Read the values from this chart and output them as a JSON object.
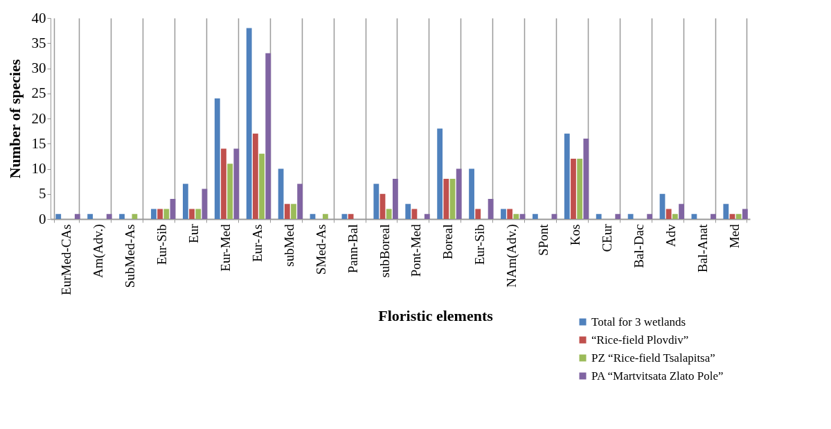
{
  "chart_data": {
    "type": "bar",
    "xlabel": "Floristic elements",
    "ylabel": "Number of species",
    "categories": [
      "EurMed-CAs",
      "Am(Adv.)",
      "SubMed-As",
      "Eur-Sib",
      "Eur",
      "Eur-Med",
      "Eur-As",
      "subMed",
      "SMed-As",
      "Pann-Bal",
      "subBoreal",
      "Pont-Med",
      "Boreal",
      "Eur-Sib",
      "NAm(Adv.)",
      "SPont",
      "Kos",
      "CEur",
      "Bal-Dac",
      "Adv",
      "Bal-Anat",
      "Med"
    ],
    "series": [
      {
        "name": "Total for 3 wetlands",
        "color": "#4f81bd",
        "values": [
          1,
          1,
          1,
          2,
          7,
          24,
          38,
          10,
          1,
          1,
          7,
          3,
          18,
          10,
          2,
          1,
          17,
          1,
          1,
          5,
          1,
          3
        ]
      },
      {
        "name": "“Rice-field Plovdiv”",
        "color": "#c0504d",
        "values": [
          0,
          0,
          0,
          2,
          2,
          14,
          17,
          3,
          0,
          1,
          5,
          2,
          8,
          2,
          2,
          0,
          12,
          0,
          0,
          2,
          0,
          1
        ]
      },
      {
        "name": "PZ “Rice-field Tsalapitsa”",
        "color": "#9bbb59",
        "values": [
          0,
          0,
          1,
          2,
          2,
          11,
          13,
          3,
          1,
          0,
          2,
          0,
          8,
          0,
          1,
          0,
          12,
          0,
          0,
          1,
          0,
          1
        ]
      },
      {
        "name": "PA “Martvitsata Zlato Pole”",
        "color": "#8064a2",
        "values": [
          1,
          1,
          0,
          4,
          6,
          14,
          33,
          7,
          0,
          0,
          8,
          1,
          10,
          4,
          1,
          1,
          16,
          1,
          1,
          3,
          1,
          2
        ]
      }
    ],
    "ylim": [
      0,
      40
    ],
    "yticks": [
      0,
      5,
      10,
      15,
      20,
      25,
      30,
      35,
      40
    ],
    "grid": "x",
    "legend": "bottom right"
  }
}
